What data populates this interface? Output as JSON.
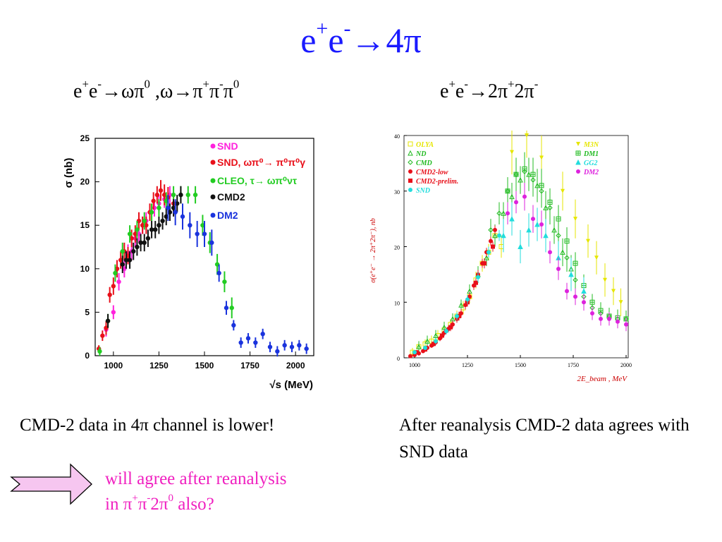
{
  "slide": {
    "title_parts": [
      "e",
      "+",
      "e",
      "-",
      "→4π"
    ],
    "subtitle_left_parts": [
      "e",
      "+",
      "e",
      "-",
      "→ωπ",
      "0",
      " ,ω→π",
      "+",
      "π",
      "-",
      "π",
      "0"
    ],
    "subtitle_right_parts": [
      "e",
      "+",
      "e",
      "-",
      "→2π",
      "+",
      "2π",
      "-"
    ],
    "caption_left": "CMD-2 data in 4π channel is lower!",
    "caption_right": "After reanalysis CMD-2 data agrees with SND data",
    "question_line1": "will agree after reanalysis",
    "question_parts_line2": [
      "in π",
      "+",
      "π",
      "-",
      "2π",
      "0",
      " also?"
    ],
    "colors": {
      "title": "#1a1aff",
      "question": "#f020c0",
      "arrow_fill": "#f6c6f0",
      "arrow_stroke": "#000000"
    }
  },
  "chart_data": [
    {
      "type": "scatter",
      "xlabel": "√s (MeV)",
      "ylabel": "σ (nb)",
      "xlim": [
        900,
        2100
      ],
      "ylim": [
        0,
        25
      ],
      "xticks": [
        "1000",
        "1250",
        "1500",
        "1750",
        "2000"
      ],
      "yticks": [
        "0",
        "5",
        "10",
        "15",
        "20",
        "25"
      ],
      "legend_position": "top-right",
      "series": [
        {
          "name": "SND",
          "color": "#ff22dd",
          "marker": "circle",
          "x": [
            960,
            1000,
            1030,
            1060,
            1080,
            1100,
            1120,
            1140,
            1160,
            1180,
            1200,
            1225,
            1250,
            1280,
            1310
          ],
          "y": [
            3,
            5,
            8.5,
            10,
            11.8,
            12,
            13.5,
            14,
            15,
            15.5,
            16.5,
            17,
            17.5,
            18,
            18.5
          ],
          "err": [
            0.8,
            0.8,
            1,
            1,
            1,
            1,
            1,
            1,
            1,
            1,
            1,
            1,
            1,
            1,
            1
          ]
        },
        {
          "name": "SND, ωπ⁰→ π⁰π⁰γ",
          "color": "#e8101a",
          "marker": "circle",
          "x": [
            920,
            940,
            960,
            980,
            1000,
            1020,
            1040,
            1060,
            1080,
            1100,
            1120,
            1140,
            1160,
            1180,
            1200,
            1220,
            1240,
            1260,
            1280,
            1300,
            1330
          ],
          "y": [
            0.8,
            2.3,
            3.2,
            7,
            8,
            10,
            11,
            12,
            11.5,
            13.5,
            14,
            15.5,
            15,
            15,
            16.5,
            17.8,
            18.5,
            19,
            18.5,
            18.2,
            17.5
          ],
          "err": [
            0.4,
            0.6,
            0.8,
            0.9,
            1,
            1,
            1,
            1,
            1,
            1,
            1,
            1,
            1,
            1,
            1,
            1,
            1,
            1.2,
            1.2,
            1.2,
            1.2
          ]
        },
        {
          "name": "CLEO, τ→ ωπ⁰ντ",
          "color": "#22cc22",
          "marker": "circle",
          "x": [
            925,
            970,
            1010,
            1050,
            1090,
            1130,
            1170,
            1210,
            1250,
            1290,
            1330,
            1370,
            1410,
            1450,
            1490,
            1530,
            1570,
            1610,
            1650
          ],
          "y": [
            0.5,
            4,
            9.5,
            12,
            14,
            14.5,
            15.5,
            16.5,
            17,
            17.8,
            18.5,
            18.5,
            18.5,
            18.5,
            15,
            13,
            10.5,
            8.5,
            5.5
          ],
          "err": [
            0.5,
            0.8,
            1,
            1,
            1,
            1,
            1,
            1,
            1,
            1,
            1,
            1,
            1,
            1,
            1.2,
            1.2,
            1.2,
            1.2,
            1.2
          ]
        },
        {
          "name": "CMD2",
          "color": "#111111",
          "marker": "circle",
          "x": [
            970,
            1050,
            1070,
            1090,
            1110,
            1130,
            1150,
            1170,
            1190,
            1210,
            1230,
            1250,
            1270,
            1290,
            1310,
            1330,
            1350,
            1370
          ],
          "y": [
            4,
            10.5,
            11,
            11,
            12,
            12.5,
            13,
            13,
            13.5,
            14.5,
            14.5,
            15,
            15.5,
            16,
            16.5,
            17,
            17.5,
            18.5
          ],
          "err": [
            0.8,
            1,
            1,
            1,
            1,
            1,
            1,
            1,
            1,
            1,
            1,
            1,
            1,
            1,
            1,
            1,
            1,
            1
          ]
        },
        {
          "name": "DM2",
          "color": "#1a33dd",
          "marker": "circle",
          "x": [
            1300,
            1340,
            1380,
            1420,
            1460,
            1500,
            1540,
            1580,
            1620,
            1660,
            1700,
            1740,
            1780,
            1820,
            1860,
            1900,
            1940,
            1980,
            2020,
            2060
          ],
          "y": [
            17,
            16.5,
            16,
            15,
            14,
            14,
            13,
            9.5,
            5.5,
            3.5,
            1.5,
            2,
            1.5,
            2.5,
            1,
            0.5,
            1.2,
            1,
            1.2,
            0.8
          ],
          "err": [
            1.5,
            1.5,
            1.5,
            1.5,
            1.5,
            1.5,
            1.5,
            1,
            0.8,
            0.6,
            0.6,
            0.6,
            0.6,
            0.6,
            0.6,
            0.6,
            0.6,
            0.6,
            0.6,
            0.6
          ]
        }
      ]
    },
    {
      "type": "scatter",
      "xlabel": "2E_beam , MeV",
      "ylabel": "σ(e⁺e⁻ → 2π⁺2π⁻), nb",
      "xlim": [
        950,
        2010
      ],
      "ylim": [
        0,
        40
      ],
      "xticks": [
        "1000",
        "1250",
        "1500",
        "1750",
        "2000"
      ],
      "yticks": [
        "0",
        "10",
        "20",
        "30",
        "40"
      ],
      "legend_position": "top",
      "series": [
        {
          "name": "OLYA",
          "color": "#e6e600",
          "marker": "open-square",
          "x": [
            990,
            1020,
            1050,
            1080,
            1110,
            1140,
            1170,
            1200,
            1230,
            1260,
            1290,
            1320,
            1350,
            1380,
            1410
          ],
          "y": [
            1,
            2,
            2.5,
            3,
            4,
            5,
            6,
            7.5,
            9,
            11,
            14,
            17,
            19,
            22,
            20
          ],
          "err": [
            0.8,
            0.8,
            0.8,
            1,
            1,
            1,
            1,
            1,
            1.2,
            1.2,
            1.5,
            1.5,
            1.5,
            2,
            2
          ]
        },
        {
          "name": "ND",
          "color": "#22bb22",
          "marker": "open-triangle",
          "x": [
            1020,
            1060,
            1100,
            1140,
            1180,
            1220,
            1260,
            1300,
            1340,
            1380,
            1420,
            1460,
            1500,
            1540,
            1580,
            1620,
            1660,
            1700,
            1740
          ],
          "y": [
            2,
            3,
            4,
            5.5,
            7,
            9.5,
            12,
            15,
            18,
            22,
            26,
            29,
            32,
            33,
            31,
            27,
            23,
            19,
            16
          ],
          "err": [
            1,
            1,
            1,
            1,
            1,
            1,
            1.2,
            1.5,
            1.5,
            2,
            2,
            2.5,
            2.5,
            3,
            3,
            3,
            2.5,
            2.5,
            2.5
          ]
        },
        {
          "name": "CMD",
          "color": "#22bb22",
          "marker": "open-diamond",
          "x": [
            1360,
            1400,
            1440,
            1480,
            1520,
            1560,
            1600,
            1640,
            1680,
            1720,
            1760,
            1800,
            1840,
            1880,
            1920,
            1960,
            2000
          ],
          "y": [
            23,
            26,
            30,
            33,
            33.5,
            32,
            30,
            27,
            22,
            18,
            14,
            11,
            9,
            8,
            7.5,
            7,
            7
          ],
          "err": [
            2,
            2,
            2.5,
            3,
            3,
            3,
            3,
            3,
            2.5,
            2.5,
            2,
            2,
            2,
            1.5,
            1.5,
            1.5,
            1.5
          ]
        },
        {
          "name": "CMD2-low",
          "color": "#e8101a",
          "marker": "circle",
          "x": [
            980,
            1000,
            1020,
            1040,
            1060,
            1080,
            1100,
            1120,
            1140,
            1160,
            1180,
            1200,
            1220,
            1240,
            1260,
            1280,
            1300,
            1320,
            1340,
            1360,
            1380
          ],
          "y": [
            0.3,
            0.5,
            0.8,
            1.2,
            1.8,
            2.2,
            2.8,
            3.5,
            4.5,
            5.2,
            6,
            7,
            8,
            9.5,
            11,
            13,
            15,
            17,
            19,
            21,
            23
          ],
          "err": [
            0.2,
            0.2,
            0.3,
            0.3,
            0.4,
            0.4,
            0.5,
            0.5,
            0.6,
            0.6,
            0.7,
            0.7,
            0.8,
            0.8,
            0.8,
            0.8,
            0.8,
            0.8,
            0.8,
            0.8,
            0.8
          ]
        },
        {
          "name": "CMD2-prelim.",
          "color": "#e8101a",
          "marker": "square",
          "x": [
            1010,
            1050,
            1090,
            1130,
            1170,
            1210,
            1250,
            1290,
            1330,
            1370
          ],
          "y": [
            1,
            1.5,
            2.5,
            4,
            5.5,
            7.5,
            10,
            13.5,
            17,
            20
          ],
          "err": [
            0.3,
            0.4,
            0.5,
            0.6,
            0.7,
            0.8,
            0.8,
            0.8,
            0.9,
            0.9
          ]
        },
        {
          "name": "SND",
          "color": "#22dddd",
          "marker": "circle",
          "x": [
            1000,
            1050,
            1100,
            1150,
            1200,
            1250,
            1300,
            1350,
            1400
          ],
          "y": [
            1,
            1.8,
            3,
            4.8,
            7.5,
            10.5,
            14.5,
            19,
            22
          ],
          "err": [
            0.3,
            0.4,
            0.5,
            0.6,
            0.7,
            0.8,
            0.9,
            1,
            1
          ]
        },
        {
          "name": "M3N",
          "color": "#e6e600",
          "marker": "down-triangle",
          "x": [
            1460,
            1530,
            1600,
            1700,
            1760,
            1820,
            1860,
            1900,
            1940,
            1975
          ],
          "y": [
            37,
            40,
            36,
            30,
            25,
            21,
            18,
            14,
            12,
            10
          ],
          "err": [
            4,
            4,
            4,
            3.5,
            3.5,
            3,
            3,
            3,
            2.5,
            2.5
          ]
        },
        {
          "name": "DM1",
          "color": "#22bb22",
          "marker": "open-cross",
          "x": [
            1440,
            1480,
            1520,
            1560,
            1600,
            1640,
            1680,
            1720,
            1760,
            1800,
            1840,
            1880,
            1920,
            1960,
            2000
          ],
          "y": [
            30,
            33,
            34,
            33,
            31,
            28,
            25,
            21,
            17,
            13,
            10,
            8.5,
            7.5,
            7.2,
            7
          ],
          "err": [
            2.5,
            3,
            3,
            3,
            3,
            2.5,
            2.5,
            2.5,
            2,
            2,
            1.5,
            1.5,
            1.5,
            1.5,
            1.5
          ]
        },
        {
          "name": "GG2",
          "color": "#22dddd",
          "marker": "triangle",
          "x": [
            1420,
            1460,
            1500,
            1540,
            1580,
            1620,
            1680,
            1740,
            1800
          ],
          "y": [
            22,
            25,
            20,
            23,
            24,
            22,
            18,
            15,
            12
          ],
          "err": [
            3,
            3,
            3,
            3,
            3,
            3,
            3,
            3,
            2.5
          ]
        },
        {
          "name": "DM2",
          "color": "#dd22dd",
          "marker": "circle",
          "x": [
            1440,
            1480,
            1520,
            1560,
            1600,
            1640,
            1680,
            1720,
            1760,
            1800,
            1840,
            1880,
            1920,
            1960,
            2000
          ],
          "y": [
            26,
            28,
            29,
            25,
            24,
            19,
            16,
            12,
            11,
            10,
            8,
            7,
            7,
            6.5,
            6
          ],
          "err": [
            2,
            2,
            2.5,
            2.5,
            2.5,
            2,
            2,
            1.5,
            1.5,
            1.5,
            1.2,
            1.2,
            1.2,
            1.2,
            1.2
          ]
        }
      ]
    }
  ]
}
